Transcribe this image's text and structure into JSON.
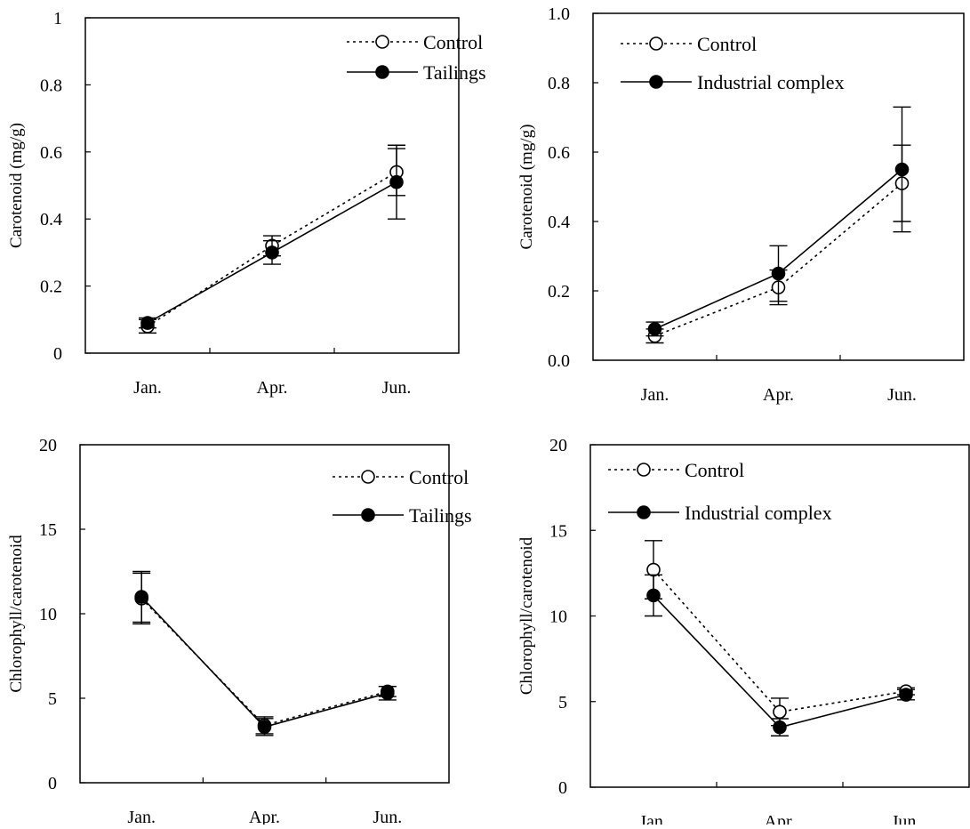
{
  "chart_data": [
    {
      "type": "line",
      "title": "",
      "xlabel": "",
      "ylabel": "Carotenoid (mg/g)",
      "categories": [
        "Jan.",
        "Apr.",
        "Jun."
      ],
      "ylim": [
        0,
        1
      ],
      "yticks": [
        0,
        0.2,
        0.4,
        0.6,
        0.8,
        1
      ],
      "ytick_labels": [
        "0",
        "0.2",
        "0.4",
        "0.6",
        "0.8",
        "1"
      ],
      "grid": false,
      "legend_position": "top-right",
      "series": [
        {
          "name": "Control",
          "style": "dotted",
          "marker": "open-circle",
          "values": [
            0.08,
            0.32,
            0.54
          ],
          "errors": [
            0.02,
            0.03,
            0.07
          ]
        },
        {
          "name": "Tailings",
          "style": "solid",
          "marker": "filled-circle",
          "values": [
            0.09,
            0.3,
            0.51
          ],
          "errors": [
            0.015,
            0.035,
            0.11
          ]
        }
      ]
    },
    {
      "type": "line",
      "title": "",
      "xlabel": "",
      "ylabel": "Carotenoid (mg/g)",
      "categories": [
        "Jan.",
        "Apr.",
        "Jun."
      ],
      "ylim": [
        0,
        1
      ],
      "yticks": [
        0,
        0.2,
        0.4,
        0.6,
        0.8,
        1
      ],
      "ytick_labels": [
        "0.0",
        "0.2",
        "0.4",
        "0.6",
        "0.8",
        "1.0"
      ],
      "grid": false,
      "legend_position": "top-right",
      "series": [
        {
          "name": "Control",
          "style": "dotted",
          "marker": "open-circle",
          "values": [
            0.07,
            0.21,
            0.51
          ],
          "errors": [
            0.02,
            0.05,
            0.11
          ]
        },
        {
          "name": "Industrial complex",
          "style": "solid",
          "marker": "filled-circle",
          "values": [
            0.09,
            0.25,
            0.55
          ],
          "errors": [
            0.02,
            0.08,
            0.18
          ]
        }
      ]
    },
    {
      "type": "line",
      "title": "",
      "xlabel": "",
      "ylabel": "Chlorophyll/carotenoid",
      "categories": [
        "Jan.",
        "Apr.",
        "Jun."
      ],
      "ylim": [
        0,
        20
      ],
      "yticks": [
        0,
        5,
        10,
        15,
        20
      ],
      "ytick_labels": [
        "0",
        "5",
        "10",
        "15",
        "20"
      ],
      "grid": false,
      "legend_position": "top-right",
      "series": [
        {
          "name": "Control",
          "style": "dotted",
          "marker": "open-circle",
          "values": [
            10.9,
            3.4,
            5.4
          ],
          "errors": [
            1.5,
            0.5,
            0.3
          ]
        },
        {
          "name": "Tailings",
          "style": "solid",
          "marker": "filled-circle",
          "values": [
            11.0,
            3.3,
            5.3
          ],
          "errors": [
            1.5,
            0.5,
            0.4
          ]
        }
      ]
    },
    {
      "type": "line",
      "title": "",
      "xlabel": "",
      "ylabel": "Chlorophyll/carotenoid",
      "categories": [
        "Jan.",
        "Apr.",
        "Jun."
      ],
      "ylim": [
        0,
        20
      ],
      "yticks": [
        0,
        5,
        10,
        15,
        20
      ],
      "ytick_labels": [
        "0",
        "5",
        "10",
        "15",
        "20"
      ],
      "grid": false,
      "legend_position": "top-right",
      "series": [
        {
          "name": "Control",
          "style": "dotted",
          "marker": "open-circle",
          "values": [
            12.7,
            4.4,
            5.6
          ],
          "errors": [
            1.7,
            0.8,
            0.2
          ]
        },
        {
          "name": "Industrial complex",
          "style": "solid",
          "marker": "filled-circle",
          "values": [
            11.2,
            3.5,
            5.4
          ],
          "errors": [
            1.2,
            0.5,
            0.3
          ]
        }
      ]
    }
  ]
}
